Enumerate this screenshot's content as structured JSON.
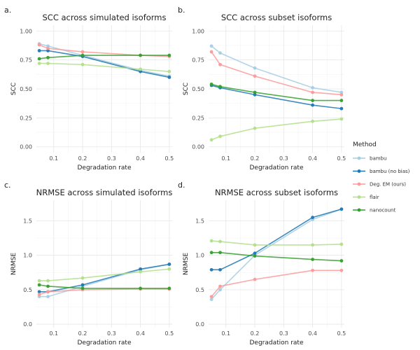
{
  "legend": {
    "title": "Method",
    "entries": [
      {
        "name": "bambu",
        "color": "#a6cee3"
      },
      {
        "name": "bambu (no bias)",
        "color": "#1f78b4"
      },
      {
        "name": "Deg. EM (ours)",
        "color": "#fb9a99"
      },
      {
        "name": "flair",
        "color": "#b2df8a"
      },
      {
        "name": "nanocount",
        "color": "#33a02c"
      }
    ]
  },
  "chart_data": [
    {
      "letter": "a.",
      "type": "line",
      "title": "SCC across simulated isoforms",
      "xlabel": "Degradation rate",
      "ylabel": "SCC",
      "x": [
        0.05,
        0.08,
        0.2,
        0.4,
        0.5
      ],
      "xticks": [
        0.1,
        0.2,
        0.3,
        0.4,
        0.5
      ],
      "yticks": [
        0.0,
        0.25,
        0.5,
        0.75,
        1.0
      ],
      "ytick_labels": [
        "0.00",
        "0.25",
        "0.50",
        "0.75",
        "1.00"
      ],
      "xlim": [
        0.04,
        0.51
      ],
      "ylim": [
        -0.05,
        1.05
      ],
      "grid": true,
      "series": [
        {
          "name": "bambu",
          "values": [
            0.89,
            0.87,
            0.79,
            0.66,
            0.61
          ]
        },
        {
          "name": "bambu (no bias)",
          "values": [
            0.83,
            0.83,
            0.78,
            0.65,
            0.6
          ]
        },
        {
          "name": "Deg. EM (ours)",
          "values": [
            0.88,
            0.85,
            0.82,
            0.79,
            0.78
          ]
        },
        {
          "name": "flair",
          "values": [
            0.72,
            0.72,
            0.71,
            0.67,
            0.65
          ]
        },
        {
          "name": "nanocount",
          "values": [
            0.76,
            0.77,
            0.79,
            0.79,
            0.79
          ]
        }
      ]
    },
    {
      "letter": "b.",
      "type": "line",
      "title": "SCC across subset isoforms",
      "xlabel": "Degradation rate",
      "ylabel": "SCC",
      "x": [
        0.05,
        0.08,
        0.2,
        0.4,
        0.5
      ],
      "xticks": [
        0.1,
        0.2,
        0.3,
        0.4,
        0.5
      ],
      "yticks": [
        0.0,
        0.25,
        0.5,
        0.75,
        1.0
      ],
      "ytick_labels": [
        "0.00",
        "0.25",
        "0.50",
        "0.75",
        "1.00"
      ],
      "xlim": [
        0.04,
        0.51
      ],
      "ylim": [
        -0.05,
        1.05
      ],
      "grid": true,
      "series": [
        {
          "name": "bambu",
          "values": [
            0.87,
            0.81,
            0.68,
            0.51,
            0.47
          ]
        },
        {
          "name": "bambu (no bias)",
          "values": [
            0.53,
            0.51,
            0.45,
            0.36,
            0.33
          ]
        },
        {
          "name": "Deg. EM (ours)",
          "values": [
            0.82,
            0.71,
            0.61,
            0.47,
            0.45
          ]
        },
        {
          "name": "flair",
          "values": [
            0.06,
            0.09,
            0.16,
            0.22,
            0.24
          ]
        },
        {
          "name": "nanocount",
          "values": [
            0.54,
            0.52,
            0.47,
            0.4,
            0.4
          ]
        }
      ]
    },
    {
      "letter": "c.",
      "type": "line",
      "title": "NRMSE across simulated isoforms",
      "xlabel": "Degradation rate",
      "ylabel": "NRMSE",
      "x": [
        0.05,
        0.08,
        0.2,
        0.4,
        0.5
      ],
      "xticks": [
        0.1,
        0.2,
        0.3,
        0.4,
        0.5
      ],
      "yticks": [
        0.0,
        0.5,
        1.0,
        1.5
      ],
      "ytick_labels": [
        "0.0",
        "0.5",
        "1.0",
        "1.5"
      ],
      "xlim": [
        0.04,
        0.51
      ],
      "ylim": [
        -0.05,
        1.8
      ],
      "grid": true,
      "series": [
        {
          "name": "bambu",
          "values": [
            0.4,
            0.4,
            0.55,
            0.79,
            0.87
          ]
        },
        {
          "name": "bambu (no bias)",
          "values": [
            0.47,
            0.47,
            0.57,
            0.8,
            0.87
          ]
        },
        {
          "name": "Deg. EM (ours)",
          "values": [
            0.43,
            0.47,
            0.5,
            0.51,
            0.51
          ]
        },
        {
          "name": "flair",
          "values": [
            0.63,
            0.63,
            0.67,
            0.76,
            0.8
          ]
        },
        {
          "name": "nanocount",
          "values": [
            0.57,
            0.55,
            0.52,
            0.52,
            0.52
          ]
        }
      ]
    },
    {
      "letter": "d.",
      "type": "line",
      "title": "NRMSE across subset isoforms",
      "xlabel": "Degradation rate",
      "ylabel": "NRMSE",
      "x": [
        0.05,
        0.08,
        0.2,
        0.4,
        0.5
      ],
      "xticks": [
        0.1,
        0.2,
        0.3,
        0.4,
        0.5
      ],
      "yticks": [
        0.0,
        0.5,
        1.0,
        1.5
      ],
      "ytick_labels": [
        "0.0",
        "0.5",
        "1.0",
        "1.5"
      ],
      "xlim": [
        0.04,
        0.51
      ],
      "ylim": [
        -0.05,
        1.8
      ],
      "grid": true,
      "series": [
        {
          "name": "bambu",
          "values": [
            0.36,
            0.5,
            1.0,
            1.52,
            1.67
          ]
        },
        {
          "name": "bambu (no bias)",
          "values": [
            0.79,
            0.79,
            1.03,
            1.55,
            1.67
          ]
        },
        {
          "name": "Deg. EM (ours)",
          "values": [
            0.4,
            0.55,
            0.65,
            0.78,
            0.78
          ]
        },
        {
          "name": "flair",
          "values": [
            1.21,
            1.2,
            1.15,
            1.15,
            1.16
          ]
        },
        {
          "name": "nanocount",
          "values": [
            1.04,
            1.04,
            0.99,
            0.94,
            0.92
          ]
        }
      ]
    }
  ]
}
